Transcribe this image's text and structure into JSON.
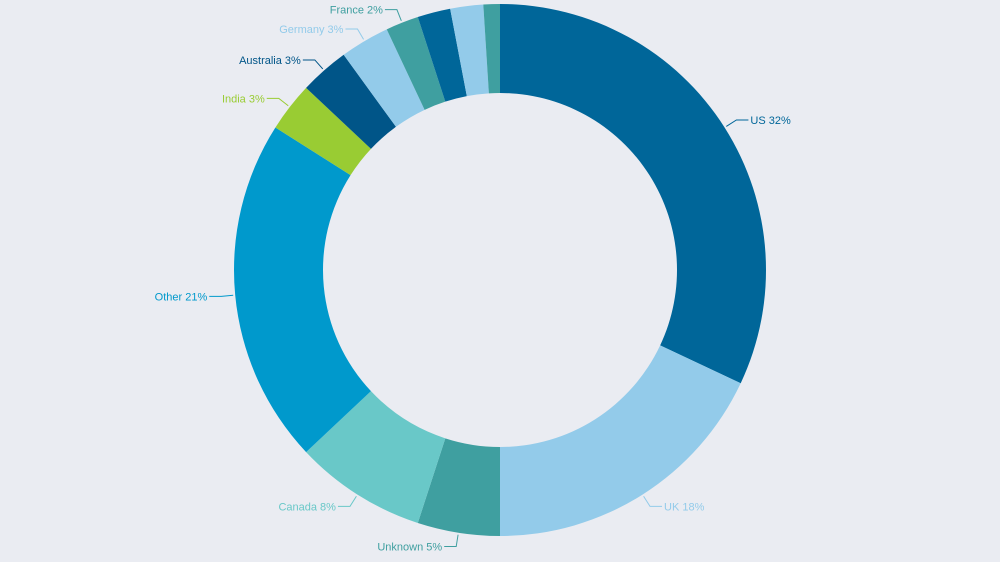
{
  "chart_data": {
    "type": "pie",
    "donut": true,
    "title": "",
    "categories": [
      "US",
      "UK",
      "Unknown",
      "Canada",
      "Other",
      "India",
      "Australia",
      "Germany",
      "France",
      "(unlabeled 1)",
      "(unlabeled 2)",
      "(unlabeled 3)"
    ],
    "values": [
      32,
      18,
      5,
      8,
      21,
      3,
      3,
      3,
      2,
      2,
      2,
      1
    ],
    "labels": [
      "US 32%",
      "UK 18%",
      "Unknown 5%",
      "Canada 8%",
      "Other 21%",
      "India 3%",
      "Australia 3%",
      "Germany 3%",
      "France 2%",
      "",
      "",
      ""
    ],
    "colors": [
      "#006699",
      "#93cbea",
      "#3f9fa0",
      "#69c8c8",
      "#0099cc",
      "#99cc33",
      "#005588",
      "#93cbea",
      "#3f9fa0",
      "#006699",
      "#93cbea",
      "#3f9fa0"
    ],
    "center": [
      500,
      270
    ],
    "outer_radius": 266,
    "inner_radius": 177,
    "start_angle_deg": 0,
    "direction": "clockwise"
  }
}
